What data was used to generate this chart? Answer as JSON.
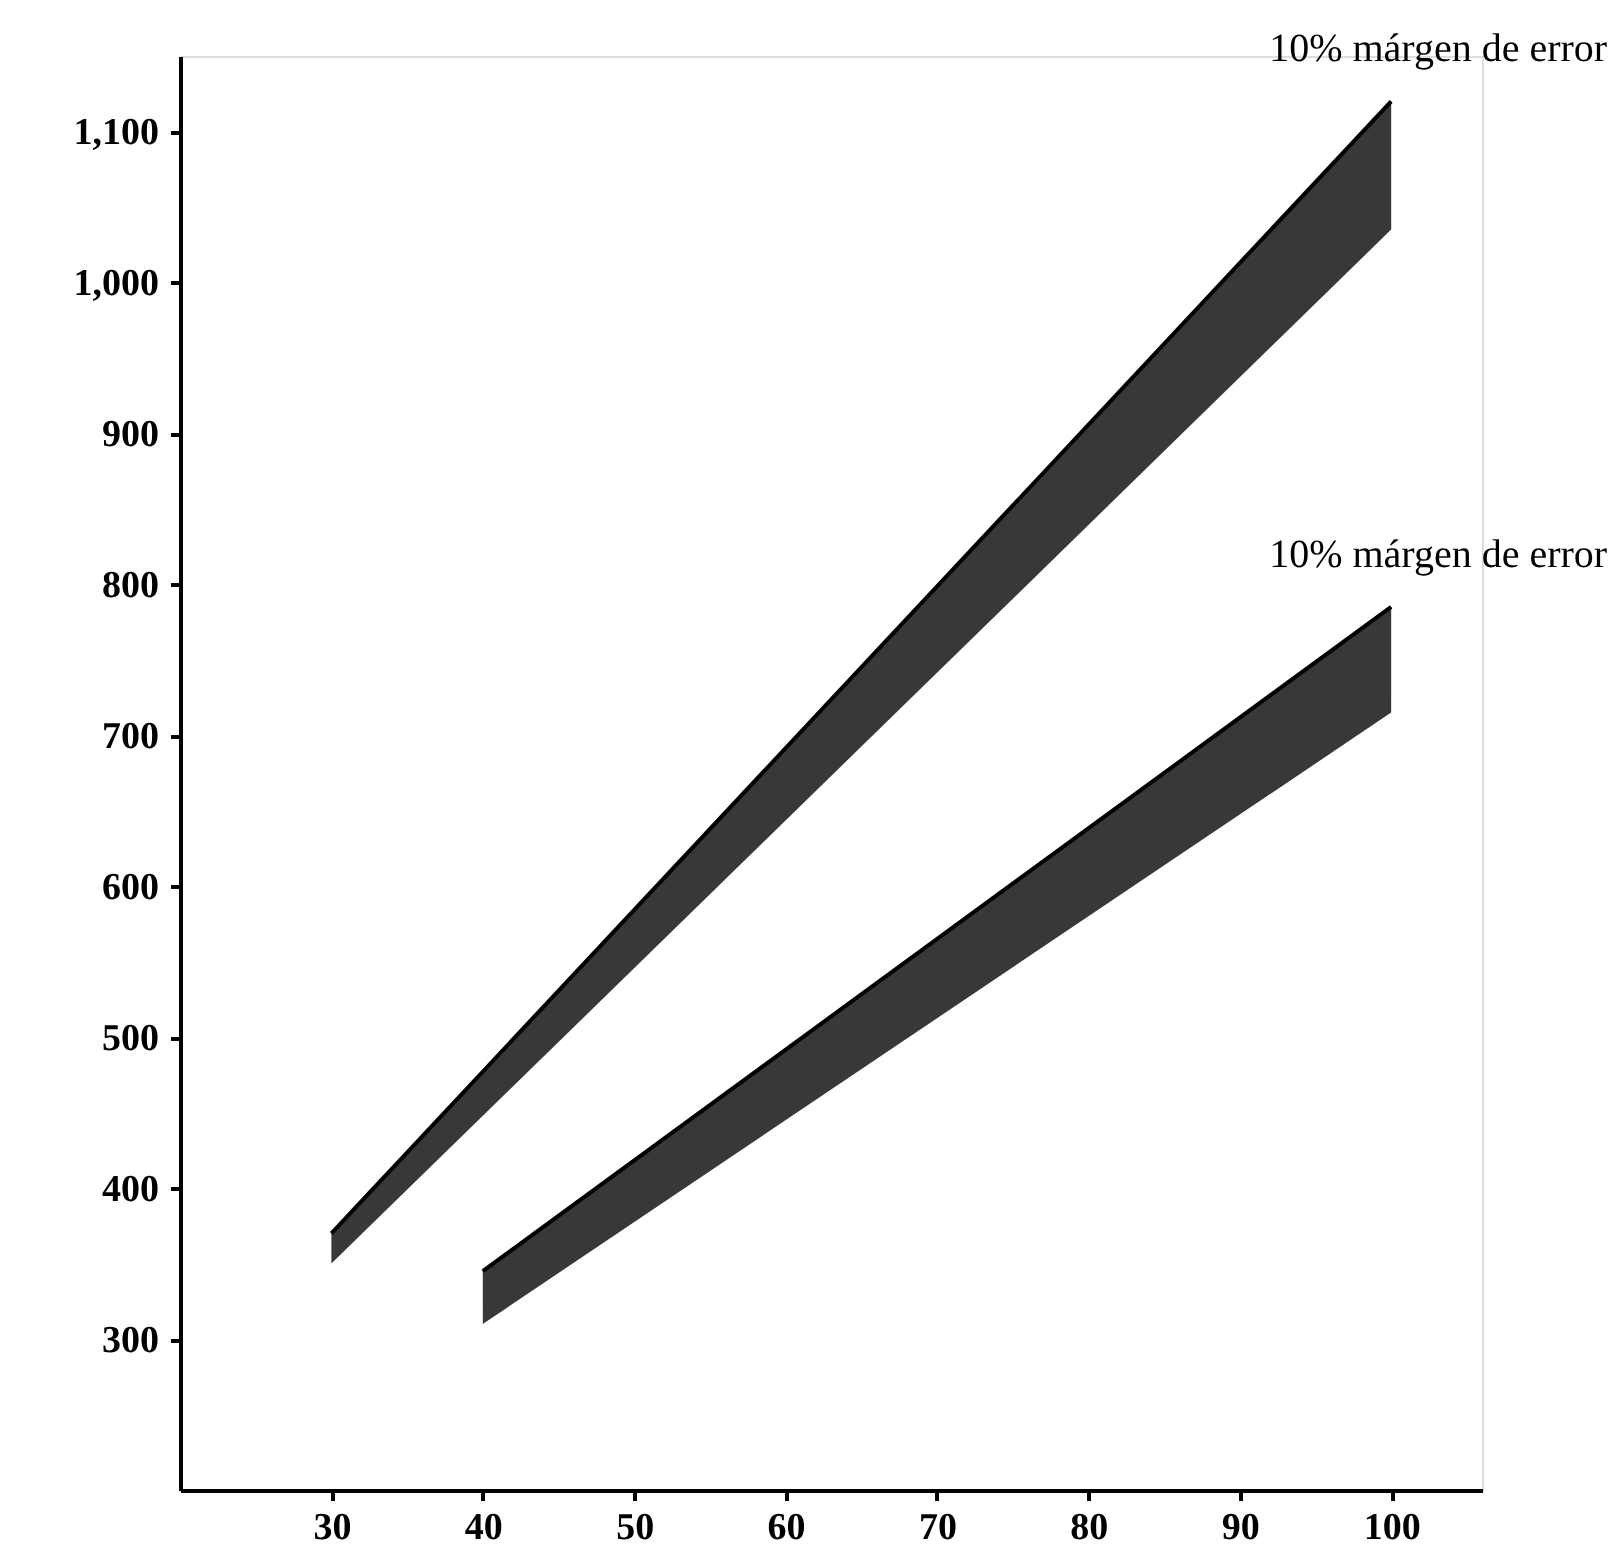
{
  "chart_data": {
    "type": "line",
    "series": [
      {
        "x": [
          30,
          100
        ],
        "values": [
          370,
          1120
        ],
        "lower": [
          350,
          1035
        ],
        "upper": [
          370,
          1120
        ],
        "color": "#000000"
      },
      {
        "x": [
          40,
          100
        ],
        "values": [
          345,
          785
        ],
        "lower": [
          310,
          715
        ],
        "upper": [
          345,
          785
        ],
        "color": "#000000"
      }
    ],
    "xlim": [
      20,
      106
    ],
    "xticks": [
      30,
      40,
      50,
      60,
      70,
      80,
      90,
      100
    ],
    "ylim": [
      200,
      1150
    ],
    "yticks": [
      300,
      400,
      500,
      600,
      700,
      800,
      900,
      {
        "value": 1000,
        "label": "1,000"
      },
      {
        "value": 1100,
        "label": "1,100"
      }
    ],
    "grid": false,
    "annotations": [
      {
        "text": "10% márgen de error",
        "x": 100,
        "y": 1120
      },
      {
        "text": "10% márgen de error",
        "x": 100,
        "y": 785
      }
    ]
  }
}
